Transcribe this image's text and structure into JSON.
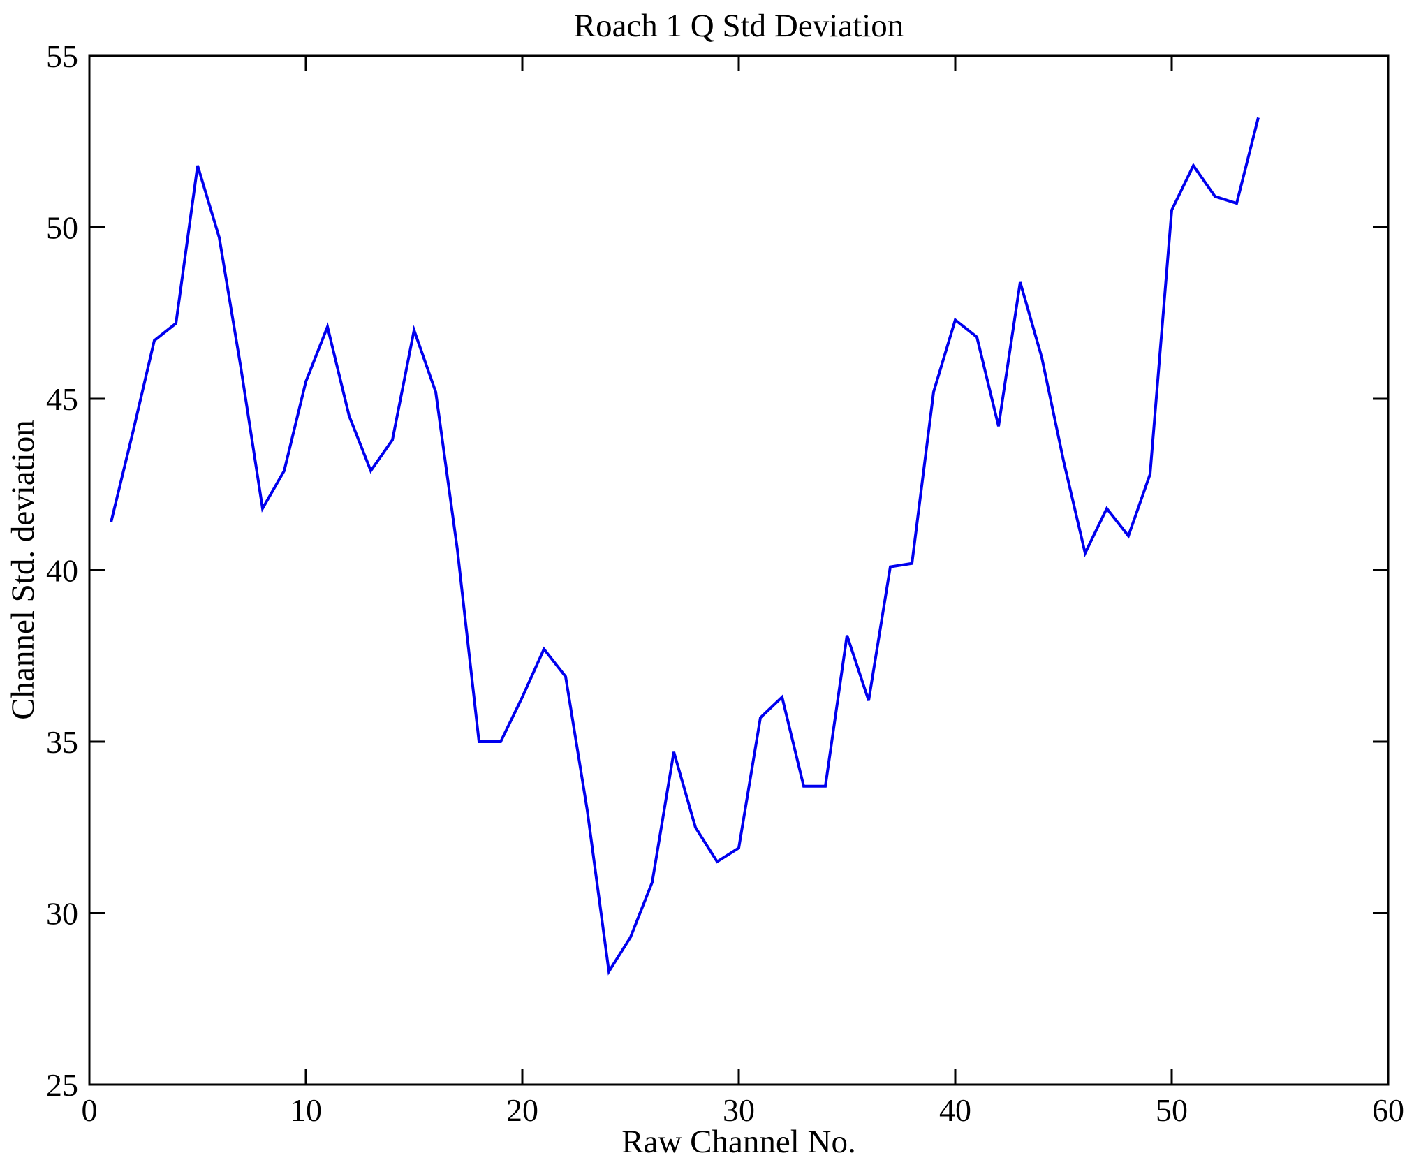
{
  "figure": {
    "background": "#ffffff"
  },
  "chart_data": {
    "type": "line",
    "title": "Roach 1 Q Std Deviation",
    "xlabel": "Raw Channel No.",
    "ylabel": "Channel Std. deviation",
    "xlim": [
      0,
      60
    ],
    "ylim": [
      25,
      55
    ],
    "xticks": [
      0,
      10,
      20,
      30,
      40,
      50,
      60
    ],
    "yticks": [
      25,
      30,
      35,
      40,
      45,
      50,
      55
    ],
    "grid": false,
    "legend": "none",
    "line_color": "#0000EE",
    "axis_color": "#000000",
    "x": [
      1,
      2,
      3,
      4,
      5,
      6,
      7,
      8,
      9,
      10,
      11,
      12,
      13,
      14,
      15,
      16,
      17,
      18,
      19,
      20,
      21,
      22,
      23,
      24,
      25,
      26,
      27,
      28,
      29,
      30,
      31,
      32,
      33,
      34,
      35,
      36,
      37,
      38,
      39,
      40,
      41,
      42,
      43,
      44,
      45,
      46,
      47,
      48,
      49,
      50,
      51,
      52,
      53,
      54
    ],
    "y": [
      41.4,
      44.0,
      46.7,
      47.2,
      51.8,
      49.7,
      45.9,
      41.8,
      42.9,
      45.5,
      47.1,
      44.5,
      42.9,
      43.8,
      47.0,
      45.2,
      40.6,
      35.0,
      35.0,
      36.3,
      37.7,
      36.9,
      33.0,
      28.3,
      29.3,
      30.9,
      34.7,
      32.5,
      31.5,
      31.9,
      35.7,
      36.3,
      33.7,
      33.7,
      38.1,
      36.2,
      40.1,
      40.2,
      45.2,
      47.3,
      46.8,
      44.2,
      48.4,
      46.2,
      43.2,
      40.5,
      41.8,
      41.0,
      42.8,
      50.5,
      51.8,
      50.9,
      50.7,
      53.2
    ]
  }
}
